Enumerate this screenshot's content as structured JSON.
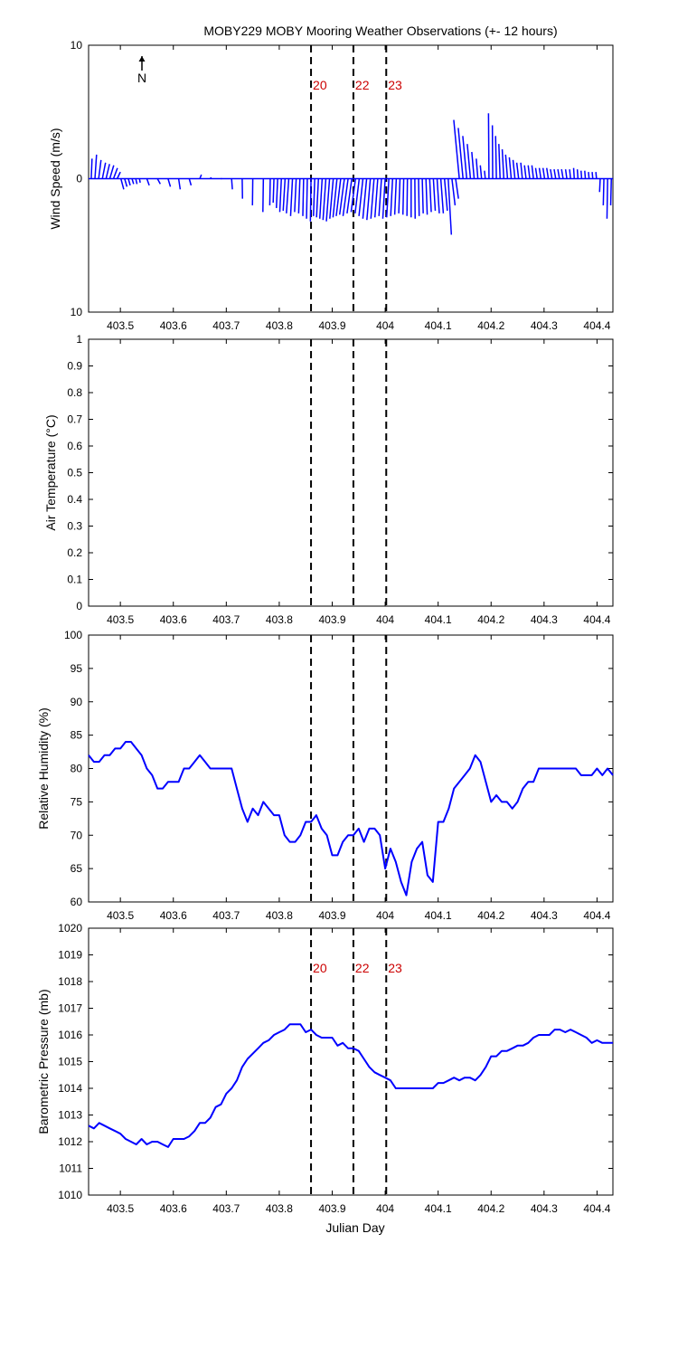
{
  "figure": {
    "title": "MOBY229 MOBY Mooring Weather Observations (+- 12 hours)"
  },
  "colors": {
    "series": "#0000ff",
    "marker_label": "#cc0000",
    "axis": "#000000",
    "background": "#ffffff"
  },
  "markers": {
    "x": [
      403.86,
      403.94,
      404.002
    ],
    "labels": [
      "20",
      "22",
      "23"
    ],
    "style": "dashed black vertical lines"
  },
  "north_indicator": "N",
  "xaxis": {
    "label": "Julian Day",
    "range": [
      403.44,
      404.43
    ],
    "ticks": [
      403.5,
      403.6,
      403.7,
      403.8,
      403.9,
      404,
      404.1,
      404.2,
      404.3,
      404.4
    ],
    "tick_labels": [
      "403.5",
      "403.6",
      "403.7",
      "403.8",
      "403.9",
      "404",
      "404.1",
      "404.2",
      "404.3",
      "404.4"
    ]
  },
  "chart_data": [
    {
      "type": "quiver",
      "ylabel": "Wind Speed (m/s)",
      "ylim": [
        -10,
        10
      ],
      "ytick_labels": [
        "10",
        "0",
        "10"
      ],
      "show_marker_labels": true,
      "note": "wind stick plot; u,v in m/s (v up = north)",
      "x": [
        403.445,
        403.452,
        403.459,
        403.466,
        403.473,
        403.48,
        403.487,
        403.494,
        403.501,
        403.508,
        403.515,
        403.522,
        403.529,
        403.536,
        403.55,
        403.57,
        403.59,
        403.61,
        403.63,
        403.65,
        403.67,
        403.69,
        403.71,
        403.73,
        403.75,
        403.77,
        403.783,
        403.79,
        403.797,
        403.804,
        403.811,
        403.818,
        403.825,
        403.832,
        403.839,
        403.846,
        403.853,
        403.86,
        403.867,
        403.874,
        403.881,
        403.888,
        403.895,
        403.902,
        403.909,
        403.916,
        403.923,
        403.93,
        403.937,
        403.944,
        403.951,
        403.958,
        403.965,
        403.972,
        403.979,
        403.986,
        403.993,
        404.0,
        404.007,
        404.014,
        404.021,
        404.028,
        404.035,
        404.042,
        404.049,
        404.056,
        404.063,
        404.07,
        404.077,
        404.084,
        404.091,
        404.098,
        404.105,
        404.112,
        404.119,
        404.126,
        404.133,
        404.14,
        404.147,
        404.154,
        404.161,
        404.168,
        404.175,
        404.182,
        404.189,
        404.196,
        404.203,
        404.21,
        404.217,
        404.224,
        404.231,
        404.238,
        404.245,
        404.252,
        404.259,
        404.266,
        404.273,
        404.28,
        404.287,
        404.294,
        404.301,
        404.308,
        404.315,
        404.322,
        404.329,
        404.336,
        404.343,
        404.35,
        404.357,
        404.364,
        404.371,
        404.378,
        404.385,
        404.392,
        404.399,
        404.406,
        404.413,
        404.42,
        404.427
      ],
      "u": [
        0.05,
        0.1,
        0.15,
        0.2,
        0.22,
        0.25,
        0.25,
        0.2,
        0.18,
        0.15,
        0.12,
        0.1,
        0.08,
        0.05,
        0.15,
        0.18,
        0.15,
        0.1,
        0.12,
        0.1,
        0.05,
        0.05,
        0.05,
        0.02,
        -0.02,
        -0.03,
        -0.03,
        -0.05,
        -0.08,
        -0.1,
        -0.12,
        -0.15,
        -0.12,
        -0.1,
        -0.08,
        -0.05,
        -0.05,
        -0.04,
        -0.08,
        -0.12,
        -0.15,
        -0.18,
        -0.2,
        -0.22,
        -0.25,
        -0.28,
        -0.3,
        -0.32,
        -0.3,
        -0.28,
        -0.26,
        -0.25,
        -0.24,
        -0.22,
        -0.2,
        -0.18,
        -0.16,
        -0.15,
        -0.14,
        -0.12,
        -0.1,
        -0.08,
        -0.05,
        -0.03,
        0.0,
        0.02,
        0.04,
        0.06,
        0.08,
        0.1,
        0.12,
        0.14,
        0.16,
        0.18,
        0.2,
        0.2,
        0.18,
        -0.35,
        -0.3,
        -0.25,
        -0.2,
        -0.15,
        -0.1,
        -0.08,
        -0.05,
        -0.03,
        -0.02,
        -0.05,
        -0.08,
        -0.1,
        -0.12,
        -0.12,
        -0.12,
        -0.12,
        -0.1,
        -0.1,
        -0.1,
        -0.1,
        -0.1,
        -0.1,
        -0.1,
        -0.1,
        -0.1,
        -0.1,
        -0.1,
        -0.1,
        -0.08,
        -0.06,
        -0.04,
        -0.04,
        -0.04,
        -0.04,
        -0.04,
        -0.04,
        -0.04,
        -0.04,
        -0.04,
        -0.04,
        -0.04
      ],
      "v": [
        1.5,
        1.8,
        1.4,
        1.2,
        1.1,
        1.0,
        0.8,
        0.5,
        -0.8,
        -0.6,
        -0.5,
        -0.4,
        -0.4,
        -0.3,
        -0.5,
        -0.4,
        -0.6,
        -0.8,
        -0.5,
        0.3,
        0.1,
        0.0,
        -0.8,
        -1.5,
        -2.0,
        -2.5,
        -2.0,
        -1.8,
        -2.2,
        -2.5,
        -2.4,
        -2.6,
        -2.8,
        -2.5,
        -2.6,
        -2.8,
        -3.0,
        -3.2,
        -2.8,
        -2.9,
        -3.0,
        -3.1,
        -3.2,
        -3.0,
        -2.9,
        -2.8,
        -2.7,
        -2.8,
        -2.6,
        -2.5,
        -2.6,
        -2.8,
        -3.0,
        -3.1,
        -3.0,
        -2.9,
        -2.8,
        -3.0,
        -2.9,
        -2.8,
        -2.7,
        -2.6,
        -2.7,
        -2.8,
        -2.9,
        -3.0,
        -2.8,
        -2.6,
        -2.7,
        -2.5,
        -2.4,
        -2.6,
        -2.6,
        -2.4,
        -4.2,
        -2.0,
        -1.5,
        4.4,
        3.8,
        3.2,
        2.6,
        2.0,
        1.5,
        1.0,
        0.6,
        4.9,
        4.0,
        3.2,
        2.6,
        2.2,
        1.8,
        1.6,
        1.4,
        1.2,
        1.2,
        1.0,
        1.0,
        1.0,
        0.8,
        0.8,
        0.8,
        0.8,
        0.7,
        0.7,
        0.7,
        0.7,
        0.7,
        0.7,
        0.8,
        0.7,
        0.6,
        0.6,
        0.5,
        0.5,
        0.5,
        -1.0,
        -2.0,
        -3.0,
        -2.0
      ]
    },
    {
      "type": "line",
      "ylabel": "Air Temperature (°C)",
      "ylim": [
        0,
        1
      ],
      "yticks": [
        0,
        0.1,
        0.2,
        0.3,
        0.4,
        0.5,
        0.6,
        0.7,
        0.8,
        0.9,
        1
      ],
      "ytick_labels": [
        "0",
        "0.1",
        "0.2",
        "0.3",
        "0.4",
        "0.5",
        "0.6",
        "0.7",
        "0.8",
        "0.9",
        "1"
      ],
      "x": [],
      "y": []
    },
    {
      "type": "line",
      "ylabel": "Relative Humidity (%)",
      "ylim": [
        60,
        100
      ],
      "yticks": [
        60,
        65,
        70,
        75,
        80,
        85,
        90,
        95,
        100
      ],
      "ytick_labels": [
        "60",
        "65",
        "70",
        "75",
        "80",
        "85",
        "90",
        "95",
        "100"
      ],
      "x": [
        403.44,
        403.45,
        403.46,
        403.47,
        403.48,
        403.49,
        403.5,
        403.51,
        403.52,
        403.53,
        403.54,
        403.55,
        403.56,
        403.57,
        403.58,
        403.59,
        403.6,
        403.61,
        403.62,
        403.63,
        403.64,
        403.65,
        403.66,
        403.67,
        403.68,
        403.69,
        403.7,
        403.71,
        403.72,
        403.73,
        403.74,
        403.75,
        403.76,
        403.77,
        403.78,
        403.79,
        403.8,
        403.81,
        403.82,
        403.83,
        403.84,
        403.85,
        403.86,
        403.87,
        403.88,
        403.89,
        403.9,
        403.91,
        403.92,
        403.93,
        403.94,
        403.95,
        403.96,
        403.97,
        403.98,
        403.99,
        404.0,
        404.01,
        404.02,
        404.03,
        404.04,
        404.05,
        404.06,
        404.07,
        404.08,
        404.09,
        404.1,
        404.11,
        404.12,
        404.13,
        404.14,
        404.15,
        404.16,
        404.17,
        404.18,
        404.19,
        404.2,
        404.21,
        404.22,
        404.23,
        404.24,
        404.25,
        404.26,
        404.27,
        404.28,
        404.29,
        404.3,
        404.31,
        404.32,
        404.33,
        404.34,
        404.35,
        404.36,
        404.37,
        404.38,
        404.39,
        404.4,
        404.41,
        404.42,
        404.43
      ],
      "y": [
        82,
        81,
        81,
        82,
        82,
        83,
        83,
        84,
        84,
        83,
        82,
        80,
        79,
        77,
        77,
        78,
        78,
        78,
        80,
        80,
        81,
        82,
        81,
        80,
        80,
        80,
        80,
        80,
        77,
        74,
        72,
        74,
        73,
        75,
        74,
        73,
        73,
        70,
        69,
        69,
        70,
        72,
        72,
        73,
        71,
        70,
        67,
        67,
        69,
        70,
        70,
        71,
        69,
        71,
        71,
        70,
        65,
        68,
        66,
        63,
        61,
        66,
        68,
        69,
        64,
        63,
        72,
        72,
        74,
        77,
        78,
        79,
        80,
        82,
        81,
        78,
        75,
        76,
        75,
        75,
        74,
        75,
        77,
        78,
        78,
        80,
        80,
        80,
        80,
        80,
        80,
        80,
        80,
        79,
        79,
        79,
        80,
        79,
        80,
        79
      ]
    },
    {
      "type": "line",
      "ylabel": "Barometric Pressure (mb)",
      "ylim": [
        1010,
        1020
      ],
      "yticks": [
        1010,
        1011,
        1012,
        1013,
        1014,
        1015,
        1016,
        1017,
        1018,
        1019,
        1020
      ],
      "ytick_labels": [
        "1010",
        "1011",
        "1012",
        "1013",
        "1014",
        "1015",
        "1016",
        "1017",
        "1018",
        "1019",
        "1020"
      ],
      "show_marker_labels": true,
      "x": [
        403.44,
        403.45,
        403.46,
        403.47,
        403.48,
        403.49,
        403.5,
        403.51,
        403.52,
        403.53,
        403.54,
        403.55,
        403.56,
        403.57,
        403.58,
        403.59,
        403.6,
        403.61,
        403.62,
        403.63,
        403.64,
        403.65,
        403.66,
        403.67,
        403.68,
        403.69,
        403.7,
        403.71,
        403.72,
        403.73,
        403.74,
        403.75,
        403.76,
        403.77,
        403.78,
        403.79,
        403.8,
        403.81,
        403.82,
        403.83,
        403.84,
        403.85,
        403.86,
        403.87,
        403.88,
        403.89,
        403.9,
        403.91,
        403.92,
        403.93,
        403.94,
        403.95,
        403.96,
        403.97,
        403.98,
        403.99,
        404.0,
        404.01,
        404.02,
        404.03,
        404.04,
        404.05,
        404.06,
        404.07,
        404.08,
        404.09,
        404.1,
        404.11,
        404.12,
        404.13,
        404.14,
        404.15,
        404.16,
        404.17,
        404.18,
        404.19,
        404.2,
        404.21,
        404.22,
        404.23,
        404.24,
        404.25,
        404.26,
        404.27,
        404.28,
        404.29,
        404.3,
        404.31,
        404.32,
        404.33,
        404.34,
        404.35,
        404.36,
        404.37,
        404.38,
        404.39,
        404.4,
        404.41,
        404.42,
        404.43
      ],
      "y": [
        1012.6,
        1012.5,
        1012.7,
        1012.6,
        1012.5,
        1012.4,
        1012.3,
        1012.1,
        1012.0,
        1011.9,
        1012.1,
        1011.9,
        1012.0,
        1012.0,
        1011.9,
        1011.8,
        1012.1,
        1012.1,
        1012.1,
        1012.2,
        1012.4,
        1012.7,
        1012.7,
        1012.9,
        1013.3,
        1013.4,
        1013.8,
        1014.0,
        1014.3,
        1014.8,
        1015.1,
        1015.3,
        1015.5,
        1015.7,
        1015.8,
        1016.0,
        1016.1,
        1016.2,
        1016.4,
        1016.4,
        1016.4,
        1016.1,
        1016.2,
        1016.0,
        1015.9,
        1015.9,
        1015.9,
        1015.6,
        1015.7,
        1015.5,
        1015.5,
        1015.4,
        1015.1,
        1014.8,
        1014.6,
        1014.5,
        1014.4,
        1014.3,
        1014.0,
        1014.0,
        1014.0,
        1014.0,
        1014.0,
        1014.0,
        1014.0,
        1014.0,
        1014.2,
        1014.2,
        1014.3,
        1014.4,
        1014.3,
        1014.4,
        1014.4,
        1014.3,
        1014.5,
        1014.8,
        1015.2,
        1015.2,
        1015.4,
        1015.4,
        1015.5,
        1015.6,
        1015.6,
        1015.7,
        1015.9,
        1016.0,
        1016.0,
        1016.0,
        1016.2,
        1016.2,
        1016.1,
        1016.2,
        1016.1,
        1016.0,
        1015.9,
        1015.7,
        1015.8,
        1015.7,
        1015.7,
        1015.7
      ]
    }
  ]
}
